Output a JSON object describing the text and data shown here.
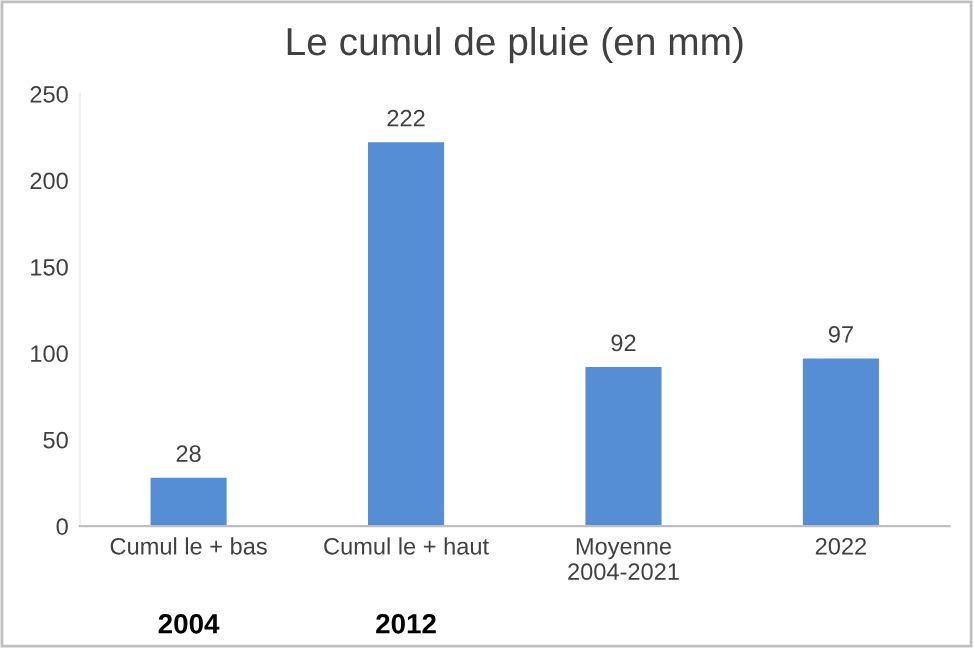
{
  "chart_data": {
    "type": "bar",
    "title": "Le cumul de pluie (en mm)",
    "categories": [
      "Cumul le + bas",
      "Cumul le + haut",
      "Moyenne\n2004-2021",
      "2022"
    ],
    "values": [
      28,
      222,
      92,
      97
    ],
    "color": "#558ed5",
    "ylim": [
      0,
      250
    ],
    "yticks": [
      0,
      50,
      100,
      150,
      200,
      250
    ],
    "grid": false,
    "data_labels": true,
    "annotations": [
      "2004",
      "2012"
    ]
  }
}
